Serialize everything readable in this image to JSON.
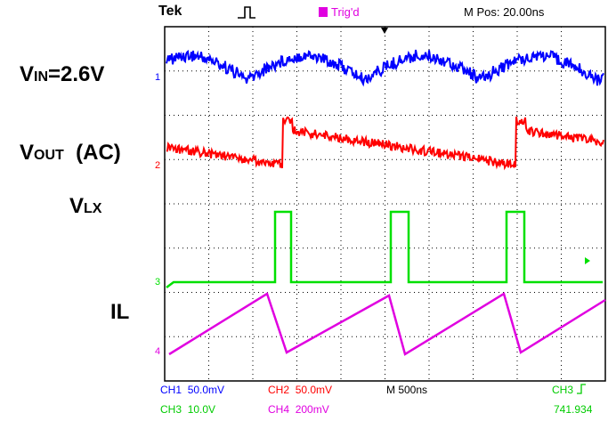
{
  "header": {
    "brand": "Tek",
    "trigger_status": "Trig'd",
    "mpos": "M Pos: 20.00ns"
  },
  "signals": {
    "vin": {
      "main": "V",
      "sub": "IN",
      "rest": "=2.6V"
    },
    "vout": {
      "main": "V",
      "sub": "OUT",
      "rest": "  (AC)"
    },
    "vlx": {
      "main": "V",
      "sub": "LX"
    },
    "il": {
      "label": "IL"
    }
  },
  "channels": {
    "ch1": {
      "marker": "1",
      "color": "#0000ff"
    },
    "ch2": {
      "marker": "2",
      "color": "#ff0000"
    },
    "ch3": {
      "marker": "3",
      "color": "#00e000"
    },
    "ch4": {
      "marker": "4",
      "color": "#e000e0"
    }
  },
  "status_bar": {
    "ch1_label": "CH1",
    "ch1_value": "50.0mV",
    "ch2_label": "CH2",
    "ch2_value": "50.0mV",
    "timebase": "M 500ns",
    "ch3_trigger": "CH3",
    "ch3_label": "CH3",
    "ch3_value": "10.0V",
    "ch4_label": "CH4",
    "ch4_value": "200mV",
    "frequency": "741.934"
  }
}
